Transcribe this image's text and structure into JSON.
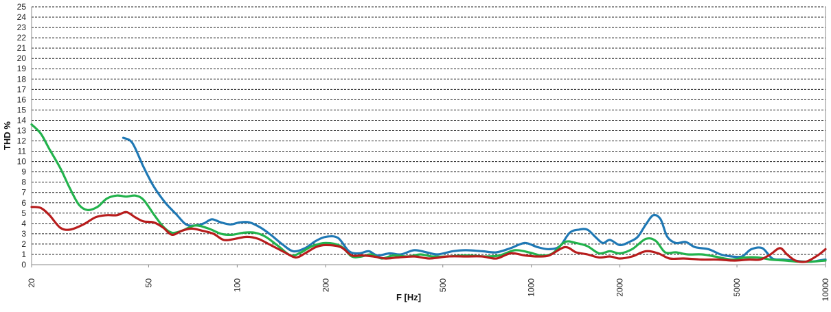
{
  "chart_data": {
    "type": "line",
    "title": "",
    "xlabel": "F [Hz]",
    "ylabel": "THD %",
    "xscale": "log",
    "xlim": [
      20,
      10000
    ],
    "ylim": [
      0,
      25
    ],
    "grid": "horizontal dashed",
    "legend": "none",
    "y_ticks": [
      "0",
      "1",
      "2",
      "3",
      "4",
      "5",
      "6",
      "7",
      "8",
      "9",
      "10",
      "11",
      "12",
      "13",
      "14",
      "15",
      "16",
      "17",
      "18",
      "19",
      "20",
      "21",
      "22",
      "23",
      "24",
      "25"
    ],
    "x_ticks": [
      {
        "value": 20,
        "label": "20"
      },
      {
        "value": 50,
        "label": "50"
      },
      {
        "value": 100,
        "label": "100"
      },
      {
        "value": 200,
        "label": "200"
      },
      {
        "value": 500,
        "label": "500"
      },
      {
        "value": 1000,
        "label": "1000"
      },
      {
        "value": 2000,
        "label": "2000"
      },
      {
        "value": 5000,
        "label": "5000"
      },
      {
        "value": 10000,
        "label": "10000"
      }
    ],
    "series": [
      {
        "color": "#1f78b4",
        "points": [
          [
            41,
            12.3
          ],
          [
            44,
            11.8
          ],
          [
            48,
            9.5
          ],
          [
            52,
            7.6
          ],
          [
            57,
            6.0
          ],
          [
            62,
            4.9
          ],
          [
            67,
            3.9
          ],
          [
            72,
            3.8
          ],
          [
            77,
            4.0
          ],
          [
            82,
            4.4
          ],
          [
            88,
            4.1
          ],
          [
            95,
            3.9
          ],
          [
            102,
            4.1
          ],
          [
            110,
            4.1
          ],
          [
            120,
            3.6
          ],
          [
            130,
            2.9
          ],
          [
            142,
            2.0
          ],
          [
            155,
            1.3
          ],
          [
            170,
            1.6
          ],
          [
            185,
            2.3
          ],
          [
            200,
            2.7
          ],
          [
            220,
            2.6
          ],
          [
            240,
            1.3
          ],
          [
            260,
            1.1
          ],
          [
            280,
            1.3
          ],
          [
            300,
            0.9
          ],
          [
            330,
            1.1
          ],
          [
            360,
            1.0
          ],
          [
            400,
            1.4
          ],
          [
            440,
            1.2
          ],
          [
            480,
            1.0
          ],
          [
            540,
            1.3
          ],
          [
            600,
            1.4
          ],
          [
            680,
            1.3
          ],
          [
            760,
            1.2
          ],
          [
            850,
            1.6
          ],
          [
            950,
            2.1
          ],
          [
            1050,
            1.7
          ],
          [
            1150,
            1.5
          ],
          [
            1250,
            1.8
          ],
          [
            1350,
            3.1
          ],
          [
            1450,
            3.4
          ],
          [
            1550,
            3.4
          ],
          [
            1650,
            2.7
          ],
          [
            1750,
            2.1
          ],
          [
            1850,
            2.4
          ],
          [
            2000,
            1.9
          ],
          [
            2150,
            2.2
          ],
          [
            2300,
            2.7
          ],
          [
            2450,
            3.9
          ],
          [
            2600,
            4.8
          ],
          [
            2750,
            4.4
          ],
          [
            2900,
            2.7
          ],
          [
            3100,
            2.1
          ],
          [
            3350,
            2.2
          ],
          [
            3600,
            1.7
          ],
          [
            4000,
            1.5
          ],
          [
            4400,
            1.0
          ],
          [
            4800,
            0.8
          ],
          [
            5200,
            0.8
          ],
          [
            5600,
            1.5
          ],
          [
            6100,
            1.6
          ],
          [
            6600,
            0.6
          ],
          [
            7200,
            0.5
          ],
          [
            7800,
            0.4
          ],
          [
            8400,
            0.3
          ],
          [
            9000,
            0.3
          ],
          [
            9500,
            0.4
          ],
          [
            10000,
            0.5
          ]
        ]
      },
      {
        "color": "#22b24c",
        "points": [
          [
            20,
            13.6
          ],
          [
            21.5,
            12.7
          ],
          [
            23,
            11.2
          ],
          [
            25,
            9.4
          ],
          [
            27,
            7.4
          ],
          [
            29,
            5.8
          ],
          [
            31,
            5.3
          ],
          [
            33.5,
            5.6
          ],
          [
            36,
            6.4
          ],
          [
            39,
            6.7
          ],
          [
            42,
            6.6
          ],
          [
            45,
            6.7
          ],
          [
            48,
            6.3
          ],
          [
            52,
            4.9
          ],
          [
            56,
            3.7
          ],
          [
            60,
            3.1
          ],
          [
            65,
            3.3
          ],
          [
            72,
            3.8
          ],
          [
            80,
            3.5
          ],
          [
            88,
            3.0
          ],
          [
            96,
            2.9
          ],
          [
            105,
            3.1
          ],
          [
            115,
            3.1
          ],
          [
            125,
            2.7
          ],
          [
            138,
            1.8
          ],
          [
            152,
            0.9
          ],
          [
            165,
            1.2
          ],
          [
            180,
            1.8
          ],
          [
            200,
            2.1
          ],
          [
            225,
            1.8
          ],
          [
            245,
            0.8
          ],
          [
            265,
            0.8
          ],
          [
            285,
            1.0
          ],
          [
            310,
            0.6
          ],
          [
            340,
            0.9
          ],
          [
            380,
            0.8
          ],
          [
            420,
            1.0
          ],
          [
            460,
            0.8
          ],
          [
            520,
            0.8
          ],
          [
            600,
            0.9
          ],
          [
            700,
            0.8
          ],
          [
            780,
            0.9
          ],
          [
            880,
            1.4
          ],
          [
            980,
            1.2
          ],
          [
            1080,
            0.9
          ],
          [
            1180,
            1.1
          ],
          [
            1300,
            2.2
          ],
          [
            1420,
            2.1
          ],
          [
            1550,
            1.8
          ],
          [
            1700,
            1.1
          ],
          [
            1850,
            1.3
          ],
          [
            2000,
            1.1
          ],
          [
            2200,
            1.5
          ],
          [
            2450,
            2.5
          ],
          [
            2650,
            2.3
          ],
          [
            2850,
            1.2
          ],
          [
            3100,
            1.2
          ],
          [
            3400,
            1.0
          ],
          [
            3800,
            1.0
          ],
          [
            4200,
            0.8
          ],
          [
            4800,
            0.5
          ],
          [
            5300,
            0.7
          ],
          [
            5900,
            0.7
          ],
          [
            6500,
            0.5
          ],
          [
            7300,
            0.4
          ],
          [
            8000,
            0.3
          ],
          [
            9000,
            0.3
          ],
          [
            10000,
            0.4
          ]
        ]
      },
      {
        "color": "#b71c1c",
        "points": [
          [
            20,
            5.6
          ],
          [
            21.5,
            5.5
          ],
          [
            23,
            4.8
          ],
          [
            25,
            3.6
          ],
          [
            27,
            3.4
          ],
          [
            30,
            3.9
          ],
          [
            33,
            4.6
          ],
          [
            36,
            4.8
          ],
          [
            39,
            4.8
          ],
          [
            42,
            5.1
          ],
          [
            45,
            4.6
          ],
          [
            48,
            4.2
          ],
          [
            52,
            4.1
          ],
          [
            56,
            3.6
          ],
          [
            60,
            2.9
          ],
          [
            65,
            3.3
          ],
          [
            70,
            3.5
          ],
          [
            76,
            3.3
          ],
          [
            83,
            3.0
          ],
          [
            90,
            2.4
          ],
          [
            98,
            2.5
          ],
          [
            108,
            2.7
          ],
          [
            118,
            2.5
          ],
          [
            130,
            1.9
          ],
          [
            145,
            1.2
          ],
          [
            158,
            0.7
          ],
          [
            170,
            1.1
          ],
          [
            185,
            1.7
          ],
          [
            200,
            1.9
          ],
          [
            225,
            1.7
          ],
          [
            245,
            0.9
          ],
          [
            265,
            0.9
          ],
          [
            290,
            0.8
          ],
          [
            320,
            0.6
          ],
          [
            350,
            0.7
          ],
          [
            400,
            0.8
          ],
          [
            450,
            0.6
          ],
          [
            520,
            0.8
          ],
          [
            600,
            0.8
          ],
          [
            680,
            0.8
          ],
          [
            760,
            0.6
          ],
          [
            850,
            1.1
          ],
          [
            950,
            0.9
          ],
          [
            1050,
            0.8
          ],
          [
            1150,
            0.9
          ],
          [
            1300,
            1.7
          ],
          [
            1420,
            1.2
          ],
          [
            1550,
            1.0
          ],
          [
            1700,
            0.7
          ],
          [
            1850,
            0.8
          ],
          [
            2000,
            0.6
          ],
          [
            2200,
            0.8
          ],
          [
            2450,
            1.3
          ],
          [
            2700,
            1.1
          ],
          [
            2950,
            0.6
          ],
          [
            3300,
            0.6
          ],
          [
            3800,
            0.5
          ],
          [
            4300,
            0.5
          ],
          [
            4900,
            0.4
          ],
          [
            5500,
            0.5
          ],
          [
            6000,
            0.5
          ],
          [
            6500,
            1.0
          ],
          [
            7000,
            1.6
          ],
          [
            7400,
            1.0
          ],
          [
            7900,
            0.4
          ],
          [
            8600,
            0.3
          ],
          [
            9400,
            0.9
          ],
          [
            10000,
            1.5
          ]
        ]
      }
    ]
  }
}
